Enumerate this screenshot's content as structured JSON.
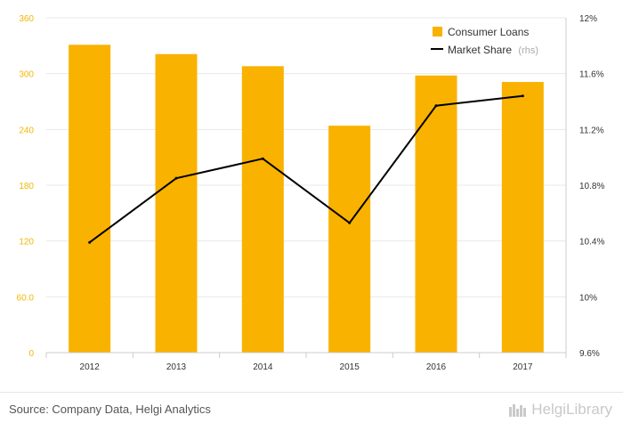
{
  "chart_data": {
    "type": "bar+line",
    "categories": [
      "2012",
      "2013",
      "2014",
      "2015",
      "2016",
      "2017"
    ],
    "series": [
      {
        "name": "Consumer Loans",
        "type": "bar",
        "axis": "left",
        "color": "#f9b200",
        "values": [
          331,
          321,
          308,
          244,
          298,
          291
        ]
      },
      {
        "name": "Market Share",
        "name_suffix": "(rhs)",
        "type": "line",
        "axis": "right",
        "color": "#000000",
        "values": [
          10.39,
          10.85,
          10.99,
          10.53,
          11.37,
          11.44
        ]
      }
    ],
    "left_axis": {
      "min": 0,
      "max": 360,
      "ticks": [
        0,
        60,
        120,
        180,
        240,
        300,
        360
      ],
      "tick_labels": [
        "0",
        "60.0",
        "120",
        "180",
        "240",
        "300",
        "360"
      ],
      "color": "#f2b705"
    },
    "right_axis": {
      "min": 9.6,
      "max": 12,
      "ticks": [
        9.6,
        10,
        10.4,
        10.8,
        11.2,
        11.6,
        12
      ],
      "tick_labels": [
        "9.6%",
        "10%",
        "10.4%",
        "10.8%",
        "11.2%",
        "11.6%",
        "12%"
      ]
    },
    "legend_position": "top-right",
    "grid": true
  },
  "footer": {
    "source": "Source: Company Data, Helgi Analytics",
    "brand": "HelgiLibrary"
  }
}
